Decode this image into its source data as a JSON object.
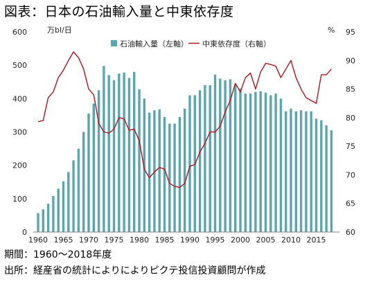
{
  "title": "図表：日本の石油輸入量と中東依存度",
  "notes": {
    "period": "期間：1960～2018年度",
    "source": "出所：経産省の統計によりによりピクテ投信投資顧問が作成"
  },
  "colors": {
    "bar": "#5ba6ad",
    "line": "#b0141e",
    "axis": "#7f7f7f"
  },
  "chart_data": {
    "type": "bar+line",
    "title": "図表：日本の石油輸入量と中東依存度",
    "left_axis": {
      "label": "万bl/日",
      "range": [
        0,
        600
      ],
      "ticks": [
        "0",
        "100",
        "200",
        "300",
        "400",
        "500",
        "600"
      ]
    },
    "right_axis": {
      "label": "%",
      "range": [
        60,
        95
      ],
      "ticks": [
        "60",
        "65",
        "70",
        "75",
        "80",
        "85",
        "90",
        "95"
      ]
    },
    "x_ticks": [
      "1960",
      "1965",
      "1970",
      "1975",
      "1980",
      "1985",
      "1990",
      "1995",
      "2000",
      "2005",
      "2010",
      "2015"
    ],
    "legend_position": "top",
    "grid": false,
    "x": [
      1960,
      1961,
      1962,
      1963,
      1964,
      1965,
      1966,
      1967,
      1968,
      1969,
      1970,
      1971,
      1972,
      1973,
      1974,
      1975,
      1976,
      1977,
      1978,
      1979,
      1980,
      1981,
      1982,
      1983,
      1984,
      1985,
      1986,
      1987,
      1988,
      1989,
      1990,
      1991,
      1992,
      1993,
      1994,
      1995,
      1996,
      1997,
      1998,
      1999,
      2000,
      2001,
      2002,
      2003,
      2004,
      2005,
      2006,
      2007,
      2008,
      2009,
      2010,
      2011,
      2012,
      2013,
      2014,
      2015,
      2016,
      2017,
      2018
    ],
    "series": [
      {
        "name": "石油輸入量（左軸）",
        "type": "bar",
        "axis": "left",
        "values": [
          57,
          68,
          85,
          108,
          130,
          152,
          180,
          215,
          250,
          300,
          355,
          385,
          425,
          498,
          470,
          455,
          475,
          478,
          462,
          480,
          428,
          400,
          358,
          365,
          368,
          345,
          325,
          325,
          345,
          370,
          410,
          410,
          425,
          440,
          440,
          472,
          460,
          455,
          458,
          442,
          430,
          415,
          415,
          420,
          422,
          418,
          410,
          415,
          400,
          362,
          370,
          362,
          365,
          362,
          362,
          340,
          335,
          320,
          305
        ]
      },
      {
        "name": "中東依存度（右軸）",
        "type": "line",
        "axis": "right",
        "values": [
          79.3,
          79.5,
          83.5,
          84.5,
          87.0,
          88.3,
          90.0,
          91.5,
          90.5,
          88.5,
          85.0,
          84.0,
          79.0,
          77.5,
          77.3,
          78.0,
          80.0,
          79.8,
          77.8,
          78.0,
          76.0,
          71.0,
          69.5,
          70.5,
          71.3,
          71.0,
          68.5,
          68.0,
          67.8,
          68.5,
          71.5,
          71.8,
          74.0,
          75.5,
          77.5,
          77.5,
          78.5,
          81.0,
          83.0,
          86.0,
          84.5,
          87.0,
          87.8,
          85.0,
          88.0,
          89.5,
          89.3,
          89.0,
          87.0,
          88.5,
          90.0,
          87.0,
          85.0,
          83.5,
          83.0,
          82.5,
          87.5,
          87.5,
          88.5
        ]
      }
    ]
  }
}
